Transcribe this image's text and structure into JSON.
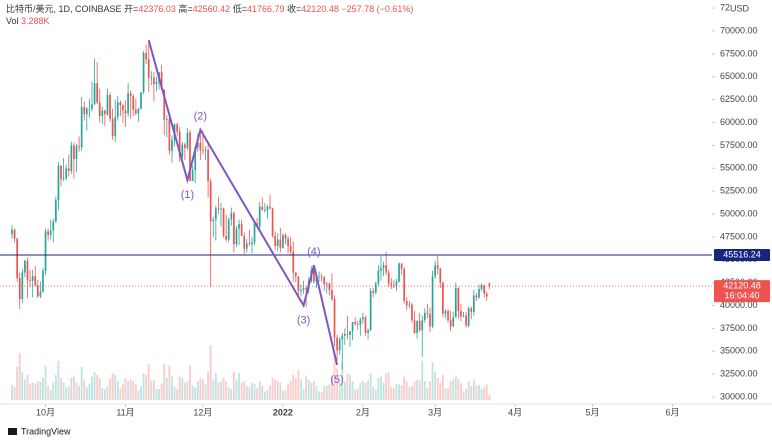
{
  "chart_data": {
    "type": "candlestick",
    "header": {
      "symbol": "比特币/美元, 1D, COINBASE",
      "ohlc_names": [
        "开=",
        "高=",
        "低=",
        "收="
      ],
      "change": "−257.78 (−0.61%)",
      "vol_name": "Vol",
      "vol_value": "3.288K"
    },
    "up_color": "#26a69a",
    "down_color": "#ef5350",
    "currency": "USD",
    "countdown": "16:04:40",
    "footer": "TradingView",
    "xlim": [
      -4.65,
      271.3
    ],
    "xticks": [
      {
        "value": 13,
        "label": "10月"
      },
      {
        "value": 44,
        "label": "11月"
      },
      {
        "value": 74,
        "label": "12月"
      },
      {
        "value": 105,
        "label": "2022"
      },
      {
        "value": 136,
        "label": "2月"
      },
      {
        "value": 164,
        "label": "3月"
      },
      {
        "value": 195,
        "label": "4月"
      },
      {
        "value": 225,
        "label": "5月"
      },
      {
        "value": 256,
        "label": "6月"
      }
    ],
    "ylim": [
      29126,
      73388
    ],
    "yticks": [
      {
        "value": 30000,
        "label": "30000.00"
      },
      {
        "value": 32500,
        "label": "32500.00"
      },
      {
        "value": 35000,
        "label": "35000.00"
      },
      {
        "value": 37500,
        "label": "37500.00"
      },
      {
        "value": 40000,
        "label": "40000.00"
      },
      {
        "value": 42500,
        "label": "42500.00"
      },
      {
        "value": 45000,
        "label": "45000.00"
      },
      {
        "value": 47500,
        "label": "47500.00"
      },
      {
        "value": 50000,
        "label": "50000.00"
      },
      {
        "value": 52500,
        "label": "52500.00"
      },
      {
        "value": 55000,
        "label": "55000.00"
      },
      {
        "value": 57500,
        "label": "57500.00"
      },
      {
        "value": 60000,
        "label": "60000.00"
      },
      {
        "value": 62500,
        "label": "62500.00"
      },
      {
        "value": 65000,
        "label": "65000.00"
      },
      {
        "value": 67500,
        "label": "67500.00"
      },
      {
        "value": 70000,
        "label": "70000.00"
      },
      {
        "value": 72500,
        "label": "72500.00"
      }
    ],
    "hline": {
      "value": 45516.24,
      "color": "#1a237e"
    },
    "waves": {
      "color": "#7e57c2",
      "x": [
        53,
        68,
        73,
        113,
        117,
        126
      ],
      "y": [
        69000,
        53700,
        59200,
        40000,
        44400,
        33500
      ],
      "labels": [
        null,
        "(1)",
        "(2)",
        "(3)",
        "(4)",
        "(5)"
      ]
    },
    "candles": [
      [
        47800,
        48800,
        47300,
        48300
      ],
      [
        48300,
        48400,
        46900,
        47300
      ],
      [
        47300,
        47400,
        42600,
        43000
      ],
      [
        43000,
        43600,
        39600,
        40700
      ],
      [
        40700,
        44000,
        40300,
        43600
      ],
      [
        43600,
        45000,
        43100,
        44900
      ],
      [
        44900,
        45200,
        40800,
        42800
      ],
      [
        42800,
        43900,
        42000,
        42700
      ],
      [
        42700,
        43900,
        40900,
        43200
      ],
      [
        43200,
        44300,
        42100,
        42200
      ],
      [
        42200,
        42800,
        40800,
        41000
      ],
      [
        41000,
        42600,
        40800,
        41500
      ],
      [
        41500,
        44100,
        41400,
        43800
      ],
      [
        43800,
        48400,
        43300,
        48100
      ],
      [
        48100,
        48400,
        47100,
        47700
      ],
      [
        47700,
        49400,
        47200,
        48200
      ],
      [
        48200,
        49500,
        46900,
        49200
      ],
      [
        49200,
        51900,
        49000,
        51500
      ],
      [
        51500,
        55700,
        50400,
        55300
      ],
      [
        55300,
        55300,
        53000,
        53800
      ],
      [
        53800,
        56100,
        53600,
        53900
      ],
      [
        53900,
        55400,
        53700,
        55000
      ],
      [
        55000,
        56500,
        54100,
        54700
      ],
      [
        54700,
        57900,
        54400,
        57500
      ],
      [
        57500,
        57800,
        53900,
        56000
      ],
      [
        56000,
        57700,
        54600,
        57400
      ],
      [
        57400,
        58500,
        56800,
        57300
      ],
      [
        57300,
        62800,
        56900,
        61700
      ],
      [
        61700,
        62300,
        60200,
        60900
      ],
      [
        60900,
        61700,
        59100,
        61500
      ],
      [
        61500,
        62600,
        60500,
        61500
      ],
      [
        61500,
        64500,
        61200,
        62000
      ],
      [
        62000,
        67000,
        61900,
        64300
      ],
      [
        64300,
        66600,
        62000,
        62200
      ],
      [
        62200,
        63700,
        60000,
        60700
      ],
      [
        60700,
        61700,
        59800,
        61300
      ],
      [
        61300,
        61400,
        59600,
        60900
      ],
      [
        60900,
        63700,
        60700,
        63000
      ],
      [
        63000,
        63300,
        60100,
        60400
      ],
      [
        60400,
        61500,
        58100,
        58500
      ],
      [
        58500,
        62500,
        57900,
        60600
      ],
      [
        60600,
        62900,
        60200,
        62200
      ],
      [
        62200,
        62400,
        60700,
        61900
      ],
      [
        61900,
        62000,
        60000,
        61300
      ],
      [
        61300,
        62400,
        59500,
        61000
      ],
      [
        61000,
        64300,
        60600,
        63200
      ],
      [
        63200,
        63500,
        60400,
        62900
      ],
      [
        62900,
        63100,
        60700,
        61400
      ],
      [
        61400,
        62600,
        60800,
        61000
      ],
      [
        61000,
        61600,
        60100,
        61500
      ],
      [
        61500,
        63300,
        61400,
        63300
      ],
      [
        63300,
        67800,
        63100,
        67600
      ],
      [
        67600,
        68500,
        66400,
        66900
      ],
      [
        66900,
        69000,
        63300,
        64900
      ],
      [
        64900,
        65600,
        64100,
        64900
      ],
      [
        64900,
        65500,
        62300,
        64200
      ],
      [
        64200,
        65000,
        63400,
        64400
      ],
      [
        64400,
        65300,
        63600,
        65500
      ],
      [
        65500,
        66300,
        63500,
        63600
      ],
      [
        63600,
        63600,
        58600,
        60300
      ],
      [
        60300,
        60800,
        58400,
        60400
      ],
      [
        60400,
        60900,
        56500,
        56900
      ],
      [
        56900,
        58600,
        55600,
        58100
      ],
      [
        58100,
        59900,
        57400,
        59800
      ],
      [
        59800,
        60000,
        58500,
        59000
      ],
      [
        59000,
        59500,
        55700,
        56300
      ],
      [
        56300,
        57900,
        55500,
        57600
      ],
      [
        57600,
        57800,
        55900,
        57200
      ],
      [
        57200,
        59400,
        57000,
        58900
      ],
      [
        58900,
        59200,
        53600,
        53600
      ],
      [
        53600,
        55300,
        53600,
        54800
      ],
      [
        54800,
        57400,
        53400,
        57300
      ],
      [
        57300,
        58800,
        56800,
        57800
      ],
      [
        57800,
        59200,
        55900,
        57000
      ],
      [
        57000,
        59100,
        56500,
        56900
      ],
      [
        56900,
        57400,
        55900,
        57000
      ],
      [
        57000,
        57600,
        51800,
        53600
      ],
      [
        53600,
        53900,
        42000,
        49200
      ],
      [
        49200,
        49700,
        47500,
        49400
      ],
      [
        49400,
        50900,
        47100,
        50600
      ],
      [
        50600,
        51900,
        50000,
        50500
      ],
      [
        50500,
        51200,
        48600,
        50600
      ],
      [
        50600,
        50700,
        47400,
        47600
      ],
      [
        47600,
        49900,
        47000,
        47200
      ],
      [
        47200,
        49600,
        46900,
        49400
      ],
      [
        49400,
        50700,
        48700,
        50100
      ],
      [
        50100,
        50300,
        45800,
        46700
      ],
      [
        46700,
        48700,
        46400,
        48400
      ],
      [
        48400,
        49400,
        46600,
        48900
      ],
      [
        48900,
        49400,
        47600,
        47600
      ],
      [
        47600,
        48000,
        45600,
        46200
      ],
      [
        46200,
        47300,
        45800,
        46800
      ],
      [
        46800,
        48300,
        46500,
        46700
      ],
      [
        46700,
        47500,
        45700,
        46900
      ],
      [
        46900,
        49300,
        46600,
        49000
      ],
      [
        49000,
        49600,
        48500,
        48600
      ],
      [
        48600,
        51300,
        48100,
        50800
      ],
      [
        50800,
        51800,
        50500,
        50400
      ],
      [
        50400,
        51200,
        50200,
        50400
      ],
      [
        50400,
        51000,
        49500,
        50800
      ],
      [
        50800,
        52100,
        50500,
        50600
      ],
      [
        50600,
        50700,
        47400,
        47600
      ],
      [
        47600,
        48100,
        46100,
        46500
      ],
      [
        46500,
        47900,
        45900,
        47200
      ],
      [
        47200,
        48500,
        45800,
        46300
      ],
      [
        46300,
        47900,
        46200,
        47700
      ],
      [
        47700,
        47900,
        46700,
        47300
      ],
      [
        47300,
        47600,
        45700,
        46500
      ],
      [
        46500,
        47500,
        45600,
        45900
      ],
      [
        45900,
        47000,
        42600,
        43600
      ],
      [
        43600,
        43700,
        42500,
        43200
      ],
      [
        43200,
        43200,
        40800,
        41600
      ],
      [
        41600,
        42300,
        41000,
        41700
      ],
      [
        41700,
        42700,
        41300,
        41900
      ],
      [
        41900,
        42200,
        39800,
        41800
      ],
      [
        41800,
        43100,
        41300,
        42700
      ],
      [
        42700,
        44300,
        42500,
        43900
      ],
      [
        43900,
        44400,
        42400,
        42600
      ],
      [
        42600,
        43400,
        41900,
        43100
      ],
      [
        43100,
        43700,
        42600,
        43200
      ],
      [
        43200,
        43500,
        42600,
        43100
      ],
      [
        43100,
        43200,
        41600,
        42300
      ],
      [
        42300,
        42600,
        41300,
        42400
      ],
      [
        42400,
        42500,
        41100,
        41700
      ],
      [
        41700,
        43500,
        40500,
        40700
      ],
      [
        40700,
        41100,
        35500,
        36500
      ],
      [
        36500,
        36800,
        34000,
        35100
      ],
      [
        35100,
        36500,
        34600,
        36300
      ],
      [
        36300,
        37000,
        33000,
        36700
      ],
      [
        36700,
        37500,
        35700,
        36900
      ],
      [
        36900,
        38900,
        36300,
        36800
      ],
      [
        36800,
        37200,
        35500,
        37200
      ],
      [
        37200,
        38200,
        36200,
        38200
      ],
      [
        38200,
        38700,
        37800,
        38000
      ],
      [
        38000,
        38300,
        37300,
        37900
      ],
      [
        37900,
        38700,
        36700,
        38500
      ],
      [
        38500,
        39200,
        38000,
        38700
      ],
      [
        38700,
        38900,
        36700,
        37000
      ],
      [
        37000,
        37500,
        36300,
        37300
      ],
      [
        37300,
        41900,
        37200,
        41600
      ],
      [
        41600,
        41900,
        40900,
        41400
      ],
      [
        41400,
        42600,
        41200,
        42400
      ],
      [
        42400,
        44400,
        42100,
        43800
      ],
      [
        43800,
        45400,
        42700,
        44100
      ],
      [
        44100,
        44800,
        43200,
        44400
      ],
      [
        44400,
        45900,
        43300,
        43600
      ],
      [
        43600,
        43900,
        42000,
        42400
      ],
      [
        42400,
        43000,
        41800,
        42200
      ],
      [
        42200,
        42800,
        41900,
        42100
      ],
      [
        42100,
        42900,
        41600,
        42600
      ],
      [
        42600,
        44700,
        42500,
        44600
      ],
      [
        44600,
        44600,
        43400,
        44000
      ],
      [
        44000,
        44200,
        40200,
        40500
      ],
      [
        40500,
        40900,
        39500,
        40000
      ],
      [
        40000,
        40500,
        39700,
        40100
      ],
      [
        40100,
        40300,
        38100,
        38400
      ],
      [
        38400,
        39400,
        36900,
        37000
      ],
      [
        37000,
        38400,
        36400,
        38300
      ],
      [
        38300,
        39200,
        37100,
        37300
      ],
      [
        37300,
        38900,
        34400,
        38400
      ],
      [
        38400,
        39700,
        38100,
        39200
      ],
      [
        39200,
        40200,
        38600,
        39100
      ],
      [
        39100,
        39800,
        37100,
        37700
      ],
      [
        37700,
        43800,
        37500,
        43200
      ],
      [
        43200,
        44900,
        42900,
        44400
      ],
      [
        44400,
        45400,
        43400,
        44000
      ],
      [
        44000,
        44100,
        41900,
        42500
      ],
      [
        42500,
        42600,
        38700,
        39100
      ],
      [
        39100,
        39600,
        38600,
        39400
      ],
      [
        39400,
        39600,
        38100,
        38400
      ],
      [
        38400,
        39400,
        37200,
        37700
      ],
      [
        37700,
        39300,
        37700,
        38700
      ],
      [
        38700,
        42500,
        38700,
        41900
      ],
      [
        41900,
        42000,
        38600,
        39400
      ],
      [
        39400,
        40200,
        38300,
        38800
      ],
      [
        38800,
        39300,
        38700,
        38900
      ],
      [
        38900,
        39300,
        37600,
        37800
      ],
      [
        37800,
        39900,
        37600,
        39700
      ],
      [
        39700,
        39900,
        38500,
        39300
      ],
      [
        39300,
        41700,
        38900,
        41100
      ],
      [
        41100,
        41400,
        40500,
        40900
      ],
      [
        40900,
        42300,
        40700,
        41800
      ],
      [
        41800,
        42400,
        41600,
        42200
      ],
      [
        42200,
        42300,
        40900,
        41300
      ],
      [
        41300,
        41500,
        40500,
        41000
      ],
      [
        42376.03,
        42560.42,
        41766.79,
        42120.48
      ]
    ],
    "volumes": [
      9500,
      8200,
      21000,
      30000,
      18000,
      13000,
      16000,
      10000,
      11000,
      9800,
      12000,
      11500,
      14000,
      22000,
      9000,
      6500,
      11000,
      16000,
      25000,
      14000,
      11000,
      8000,
      8500,
      14000,
      15000,
      11000,
      9000,
      21000,
      13000,
      8000,
      10500,
      15000,
      18000,
      16000,
      14000,
      7500,
      7000,
      9000,
      14000,
      17000,
      16000,
      12000,
      7500,
      10000,
      14000,
      12000,
      13000,
      12000,
      10000,
      6000,
      8500,
      17000,
      16000,
      23000,
      12500,
      13000,
      7000,
      7000,
      10500,
      23000,
      14000,
      22000,
      15000,
      8500,
      7000,
      15000,
      14000,
      11000,
      12000,
      22000,
      9000,
      8000,
      12000,
      14000,
      13000,
      10000,
      18000,
      35000,
      13000,
      17000,
      11000,
      11500,
      14000,
      12000,
      8000,
      7000,
      18000,
      13000,
      17000,
      11000,
      12000,
      9000,
      8000,
      11000,
      10500,
      7500,
      12000,
      9000,
      5500,
      6500,
      9000,
      14000,
      13000,
      12000,
      11000,
      6000,
      6000,
      10500,
      12000,
      16000,
      14000,
      19000,
      13000,
      7000,
      15000,
      13000,
      11000,
      12000,
      9000,
      5500,
      5000,
      9000,
      9000,
      10000,
      15000,
      30000,
      20000,
      11000,
      24000,
      12000,
      17000,
      16000,
      12000,
      6500,
      7000,
      11000,
      12000,
      11000,
      12500,
      17000,
      8500,
      6500,
      14000,
      15000,
      11000,
      17000,
      18000,
      8000,
      7500,
      10500,
      10000,
      9500,
      15000,
      12000,
      8500,
      9000,
      12000,
      13000,
      12500,
      25000,
      12000,
      7500,
      12000,
      24000,
      18000,
      14000,
      11000,
      16000,
      7500,
      7500,
      12000,
      13000,
      15000,
      13500,
      10500,
      5500,
      7000,
      12000,
      9000,
      13000,
      9000,
      9500,
      7000,
      8000,
      10000,
      3288
    ]
  }
}
